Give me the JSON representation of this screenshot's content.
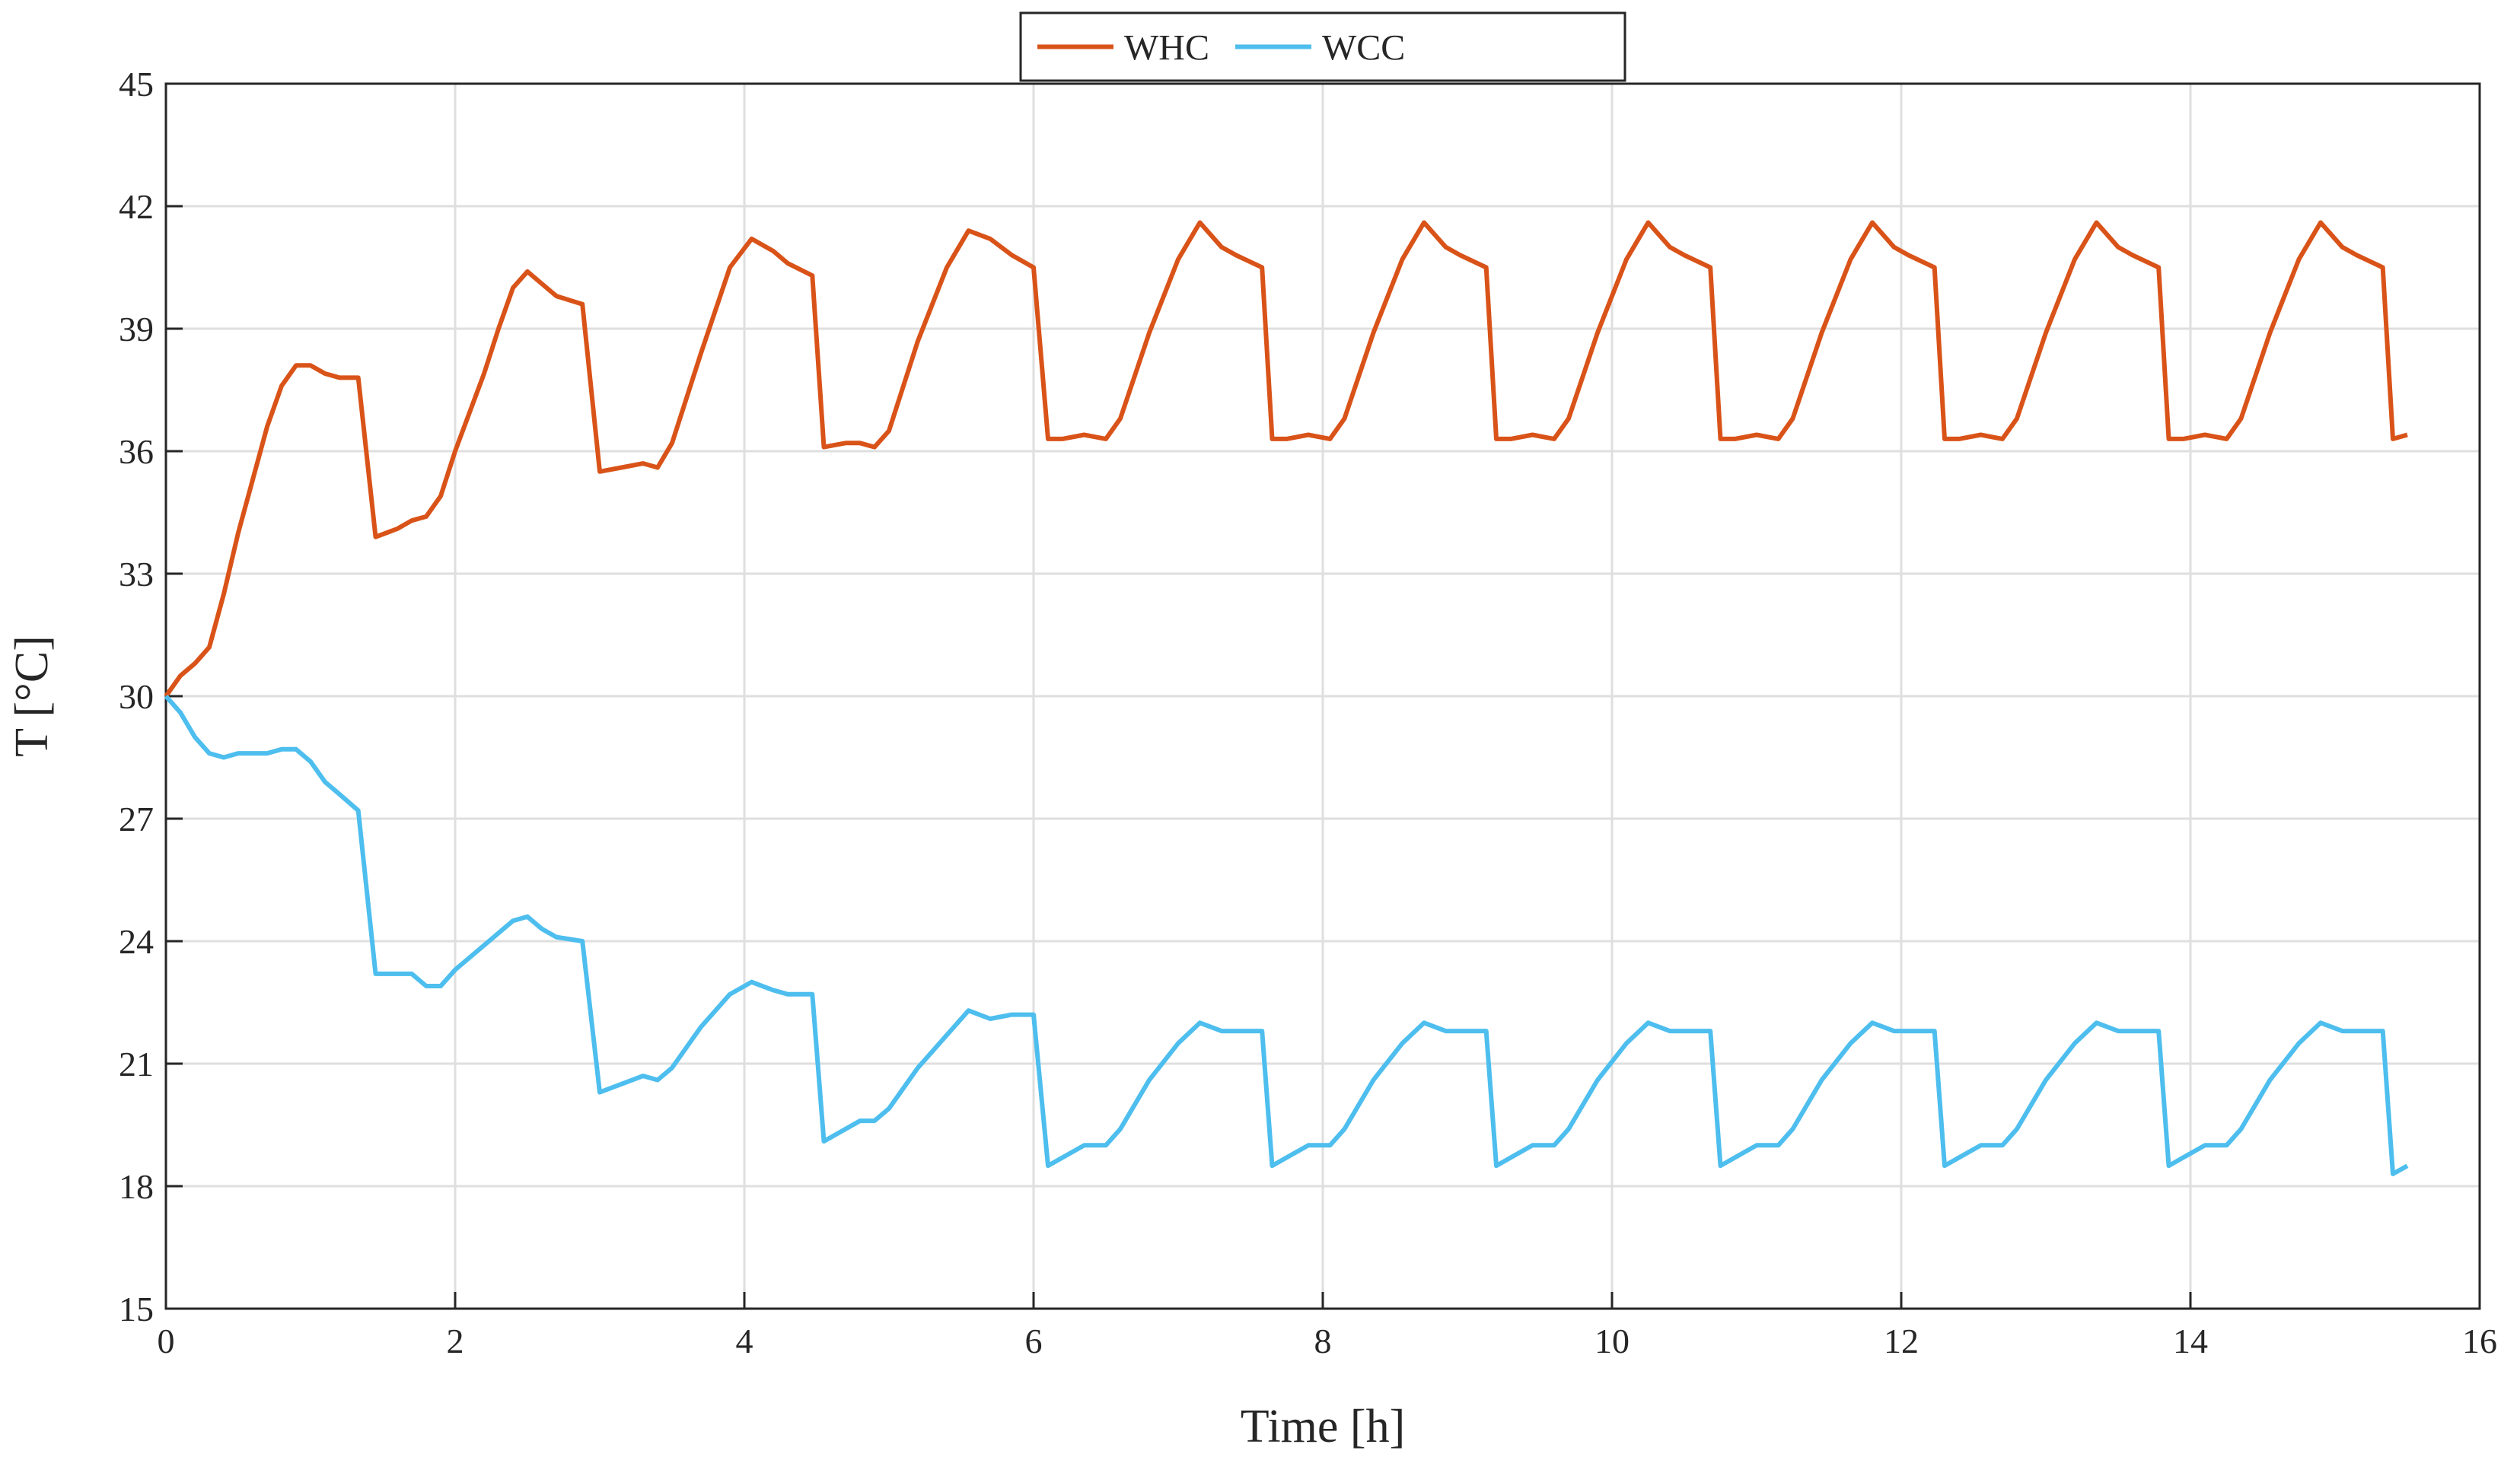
{
  "chart_data": {
    "type": "line",
    "xlabel": "Time [h]",
    "ylabel": "T [°C]",
    "xlim": [
      0,
      16
    ],
    "ylim": [
      15,
      45
    ],
    "xticks": [
      0,
      2,
      4,
      6,
      8,
      10,
      12,
      14,
      16
    ],
    "yticks": [
      15,
      18,
      21,
      24,
      27,
      30,
      33,
      36,
      39,
      42,
      45
    ],
    "grid": true,
    "legend": "top-outside",
    "x": [
      0,
      0.1,
      0.2,
      0.3,
      0.4,
      0.5,
      0.6,
      0.7,
      0.8,
      0.9,
      1.0,
      1.1,
      1.2,
      1.33,
      1.45,
      1.6,
      1.7,
      1.8,
      1.9,
      2.0,
      2.2,
      2.3,
      2.4,
      2.5,
      2.6,
      2.7,
      2.88,
      3.0,
      3.15,
      3.3,
      3.4,
      3.5,
      3.7,
      3.9,
      4.05,
      4.2,
      4.3,
      4.47,
      4.55,
      4.7,
      4.8,
      4.9,
      5.0,
      5.2,
      5.4,
      5.55,
      5.7,
      5.85,
      6.0,
      6.1,
      6.2,
      6.35,
      6.5,
      6.6,
      6.8,
      7.0,
      7.15,
      7.3,
      7.4,
      7.58,
      7.65,
      7.75,
      7.9,
      8.05,
      8.15,
      8.35,
      8.55,
      8.7,
      8.85,
      8.95,
      9.13,
      9.2,
      9.3,
      9.45,
      9.6,
      9.7,
      9.9,
      10.1,
      10.25,
      10.4,
      10.5,
      10.68,
      10.75,
      10.85,
      11.0,
      11.15,
      11.25,
      11.45,
      11.65,
      11.8,
      11.95,
      12.05,
      12.23,
      12.3,
      12.4,
      12.55,
      12.7,
      12.8,
      13.0,
      13.2,
      13.35,
      13.5,
      13.6,
      13.78,
      13.85,
      13.95,
      14.1,
      14.25,
      14.35,
      14.55,
      14.75,
      14.9,
      15.05,
      15.15,
      15.33,
      15.4,
      15.5
    ],
    "series": [
      {
        "name": "WHC",
        "color": "#d95319",
        "values": [
          30,
          30.5,
          30.8,
          31.2,
          32.5,
          34,
          35.3,
          36.6,
          37.6,
          38.1,
          38.1,
          37.9,
          37.8,
          37.8,
          33.9,
          34.1,
          34.3,
          34.4,
          34.9,
          36,
          37.9,
          39.0,
          40.0,
          40.4,
          40.1,
          39.8,
          39.6,
          35.5,
          35.6,
          35.7,
          35.6,
          36.2,
          38.4,
          40.5,
          41.2,
          40.9,
          40.6,
          40.3,
          36.1,
          36.2,
          36.2,
          36.1,
          36.5,
          38.7,
          40.5,
          41.4,
          41.2,
          40.8,
          40.5,
          36.3,
          36.3,
          36.4,
          36.3,
          36.8,
          38.9,
          40.7,
          41.6,
          41.0,
          40.8,
          40.5,
          36.3,
          36.3,
          36.4,
          36.3,
          36.8,
          38.9,
          40.7,
          41.6,
          41.0,
          40.8,
          40.5,
          36.3,
          36.3,
          36.4,
          36.3,
          36.8,
          38.9,
          40.7,
          41.6,
          41.0,
          40.8,
          40.5,
          36.3,
          36.3,
          36.4,
          36.3,
          36.8,
          38.9,
          40.7,
          41.6,
          41.0,
          40.8,
          40.5,
          36.3,
          36.3,
          36.4,
          36.3,
          36.8,
          38.9,
          40.7,
          41.6,
          41.0,
          40.8,
          40.5,
          36.3,
          36.3,
          36.4,
          36.3,
          36.8,
          38.9,
          40.7,
          41.6,
          41.0,
          40.8,
          40.5,
          36.3,
          36.4
        ]
      },
      {
        "name": "WCC",
        "color": "#4dbeee",
        "values": [
          30,
          29.6,
          29.0,
          28.6,
          28.5,
          28.6,
          28.6,
          28.6,
          28.7,
          28.7,
          28.4,
          27.9,
          27.6,
          27.2,
          23.2,
          23.2,
          23.2,
          22.9,
          22.9,
          23.3,
          23.9,
          24.2,
          24.5,
          24.6,
          24.3,
          24.1,
          24.0,
          20.3,
          20.5,
          20.7,
          20.6,
          20.9,
          21.9,
          22.7,
          23.0,
          22.8,
          22.7,
          22.7,
          19.1,
          19.4,
          19.6,
          19.6,
          19.9,
          20.9,
          21.7,
          22.3,
          22.1,
          22.2,
          22.2,
          18.5,
          18.7,
          19.0,
          19.0,
          19.4,
          20.6,
          21.5,
          22.0,
          21.8,
          21.8,
          21.8,
          18.5,
          18.7,
          19.0,
          19.0,
          19.4,
          20.6,
          21.5,
          22.0,
          21.8,
          21.8,
          21.8,
          18.5,
          18.7,
          19.0,
          19.0,
          19.4,
          20.6,
          21.5,
          22.0,
          21.8,
          21.8,
          21.8,
          18.5,
          18.7,
          19.0,
          19.0,
          19.4,
          20.6,
          21.5,
          22.0,
          21.8,
          21.8,
          21.8,
          18.5,
          18.7,
          19.0,
          19.0,
          19.4,
          20.6,
          21.5,
          22.0,
          21.8,
          21.8,
          21.8,
          18.5,
          18.7,
          19.0,
          19.0,
          19.4,
          20.6,
          21.5,
          22.0,
          21.8,
          21.8,
          21.8,
          18.3,
          18.5
        ]
      }
    ]
  }
}
